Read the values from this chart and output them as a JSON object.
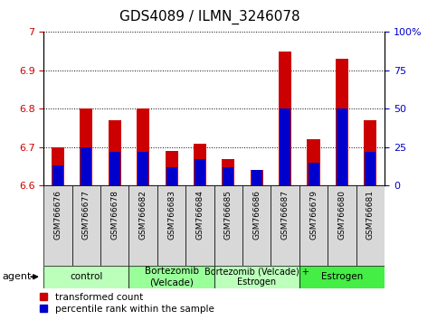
{
  "title": "GDS4089 / ILMN_3246078",
  "samples": [
    "GSM766676",
    "GSM766677",
    "GSM766678",
    "GSM766682",
    "GSM766683",
    "GSM766684",
    "GSM766685",
    "GSM766686",
    "GSM766687",
    "GSM766679",
    "GSM766680",
    "GSM766681"
  ],
  "red_values": [
    6.7,
    6.8,
    6.77,
    6.8,
    6.69,
    6.71,
    6.67,
    6.64,
    6.95,
    6.72,
    6.93,
    6.77
  ],
  "blue_percentiles": [
    13,
    25,
    22,
    22,
    12,
    17,
    12,
    14,
    50,
    15,
    50,
    22
  ],
  "y_base": 6.6,
  "ylim_left": [
    6.6,
    7.0
  ],
  "ylim_right": [
    0,
    100
  ],
  "yticks_left": [
    6.6,
    6.7,
    6.8,
    6.9,
    7.0
  ],
  "ytick_labels_left": [
    "6.6",
    "6.7",
    "6.8",
    "6.9",
    "7"
  ],
  "yticks_right": [
    0,
    25,
    50,
    75,
    100
  ],
  "ytick_labels_right": [
    "0",
    "25",
    "50",
    "75",
    "100%"
  ],
  "groups": [
    {
      "label": "control",
      "start": 0,
      "end": 3,
      "color": "#bbffbb"
    },
    {
      "label": "Bortezomib\n(Velcade)",
      "start": 3,
      "end": 6,
      "color": "#99ff99"
    },
    {
      "label": "Bortezomib (Velcade) +\nEstrogen",
      "start": 6,
      "end": 9,
      "color": "#bbffbb"
    },
    {
      "label": "Estrogen",
      "start": 9,
      "end": 12,
      "color": "#44ee44"
    }
  ],
  "bar_width": 0.45,
  "red_color": "#cc0000",
  "blue_color": "#0000cc",
  "legend_red": "transformed count",
  "legend_blue": "percentile rank within the sample",
  "agent_label": "agent",
  "title_fontsize": 11,
  "tick_color_left": "#cc0000",
  "tick_color_right": "#0000cc",
  "grid_color": "black",
  "group_font_size": 7.5,
  "xlim": [
    -0.5,
    11.5
  ]
}
